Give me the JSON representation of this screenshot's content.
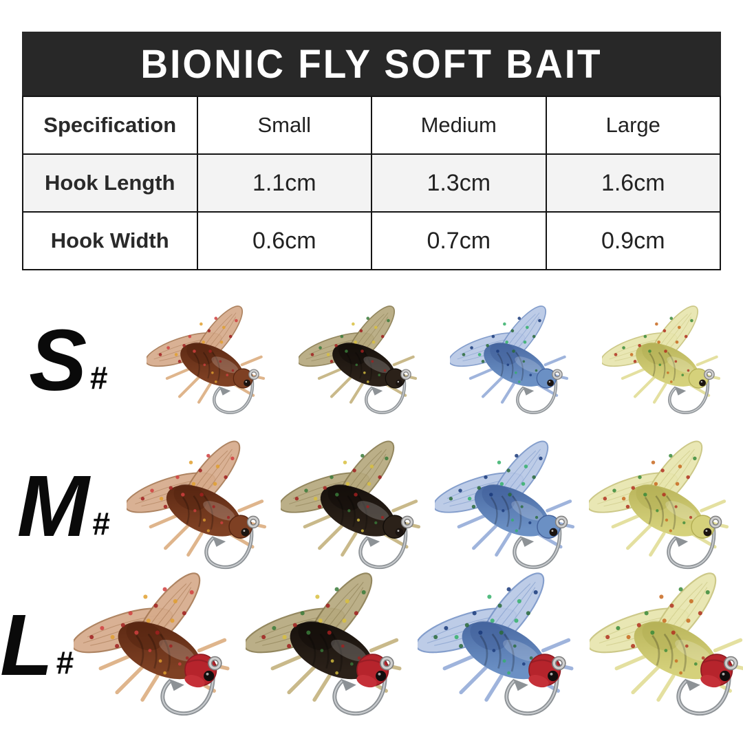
{
  "banner": {
    "title": "BIONIC FLY SOFT BAIT",
    "bg_color": "#282828",
    "text_color": "#ffffff"
  },
  "spec_table": {
    "columns": [
      "Specification",
      "Small",
      "Medium",
      "Large"
    ],
    "rows": [
      {
        "label": "Hook Length",
        "values": [
          "1.1cm",
          "1.3cm",
          "1.6cm"
        ]
      },
      {
        "label": "Hook Width",
        "values": [
          "0.6cm",
          "0.7cm",
          "0.9cm"
        ]
      }
    ],
    "border_color": "#141414",
    "alt_row_bg": "#f3f3f3"
  },
  "size_rows": [
    {
      "label": "S",
      "suffix": "#",
      "fly_width": 190,
      "red_head": false
    },
    {
      "label": "M",
      "suffix": "#",
      "fly_width": 224,
      "red_head": false
    },
    {
      "label": "L",
      "suffix": "#",
      "fly_width": 250,
      "red_head": true
    }
  ],
  "fly_variants": [
    {
      "name": "brown",
      "wing": "#d6ab8b",
      "wing_edge": "#a87a55",
      "body": "#7e4023",
      "body_dark": "#552410",
      "leg": "#dfb58c",
      "specks": [
        "#a02020",
        "#d04040",
        "#e0a030"
      ]
    },
    {
      "name": "black",
      "wing": "#b6a97e",
      "wing_edge": "#8a7d52",
      "body": "#2b2119",
      "body_dark": "#120d09",
      "leg": "#c9b98a",
      "specks": [
        "#a02020",
        "#3a7a3a",
        "#d8c040"
      ]
    },
    {
      "name": "blue",
      "wing": "#b8c8e6",
      "wing_edge": "#7a96c8",
      "body": "#6b90c4",
      "body_dark": "#42619b",
      "leg": "#9fb4dc",
      "specks": [
        "#2a6a3a",
        "#1a3a7a",
        "#35b06a"
      ]
    },
    {
      "name": "yellow",
      "wing": "#e8e6ae",
      "wing_edge": "#c8c47e",
      "body": "#d5d17b",
      "body_dark": "#b3ae54",
      "leg": "#e4e0a0",
      "specks": [
        "#b03020",
        "#3a8a3a",
        "#c86820"
      ]
    }
  ],
  "red_head_color": "#b6242c",
  "hook_color": "#8d9296"
}
